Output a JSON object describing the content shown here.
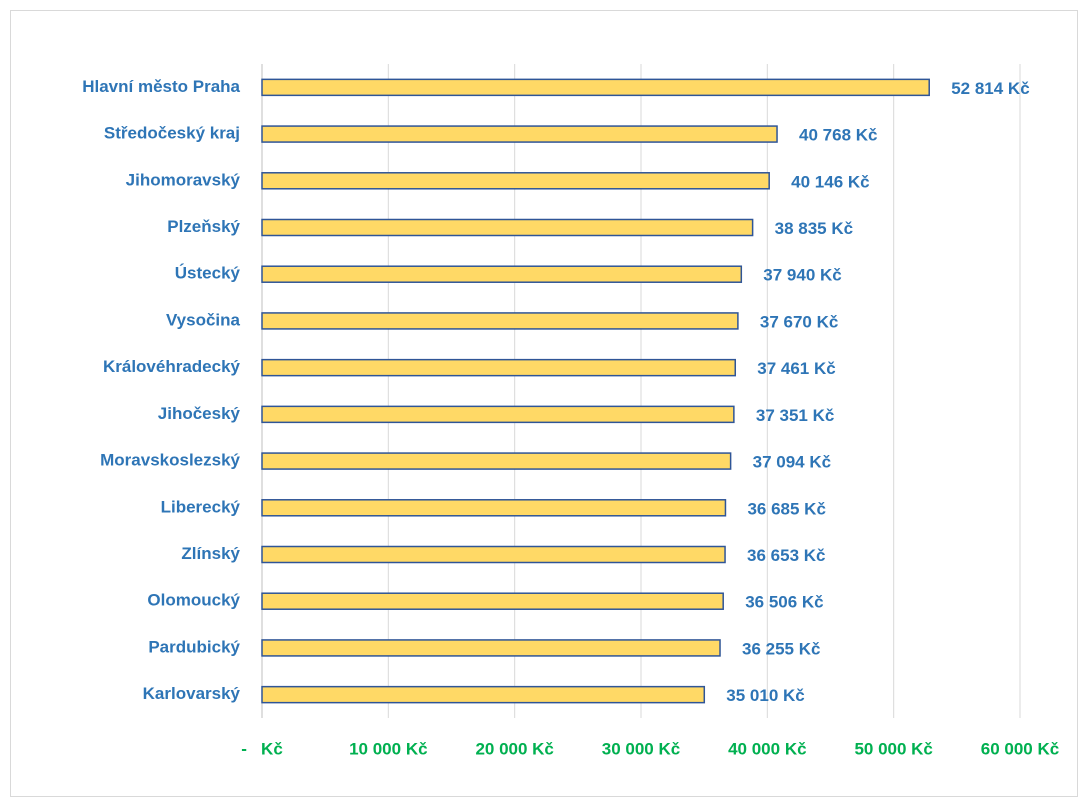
{
  "chart_data": {
    "type": "bar",
    "orientation": "horizontal",
    "categories": [
      "Hlavní město Praha",
      "Středočeský kraj",
      "Jihomoravský",
      "Plzeňský",
      "Ústecký",
      "Vysočina",
      "Královéhradecký",
      "Jihočeský",
      "Moravskoslezský",
      "Liberecký",
      "Zlínský",
      "Olomoucký",
      "Pardubický",
      "Karlovarský"
    ],
    "values": [
      52814,
      40768,
      40146,
      38835,
      37940,
      37670,
      37461,
      37351,
      37094,
      36685,
      36653,
      36506,
      36255,
      35010
    ],
    "value_labels": [
      "52 814 Kč",
      "40 768 Kč",
      "40 146 Kč",
      "38 835 Kč",
      "37 940 Kč",
      "37 670 Kč",
      "37 461 Kč",
      "37 351 Kč",
      "37 094 Kč",
      "36 685 Kč",
      "36 653 Kč",
      "36 506 Kč",
      "36 255 Kč",
      "35 010 Kč"
    ],
    "color": "#ffd966",
    "edge_color": "#2f5597",
    "xlim": [
      0,
      60000
    ],
    "xticks": [
      {
        "value": 0,
        "label": "-   Kč"
      },
      {
        "value": 10000,
        "label": "10 000 Kč"
      },
      {
        "value": 20000,
        "label": "20 000 Kč"
      },
      {
        "value": 30000,
        "label": "30 000 Kč"
      },
      {
        "value": 40000,
        "label": "40 000 Kč"
      },
      {
        "value": 50000,
        "label": "50 000 Kč"
      },
      {
        "value": 60000,
        "label": "60 000 Kč"
      }
    ],
    "grid": true
  }
}
